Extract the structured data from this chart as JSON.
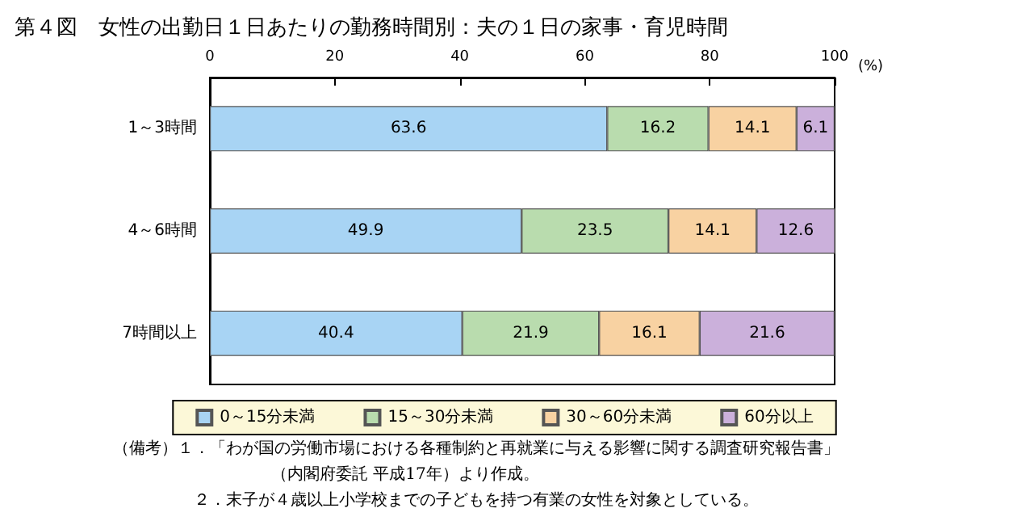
{
  "chart_data": {
    "type": "bar",
    "orientation": "horizontal",
    "stacked": true,
    "title": "第４図　女性の出勤日１日あたりの勤務時間別：夫の１日の家事・育児時間",
    "xlabel": "(%)",
    "categories": [
      "1～3時間",
      "4～6時間",
      "7時間以上"
    ],
    "series": [
      {
        "name": "0～15分未満",
        "color": "#a8d4f4",
        "values": [
          63.6,
          49.9,
          40.4
        ]
      },
      {
        "name": "15～30分未満",
        "color": "#b9dcae",
        "values": [
          16.2,
          23.5,
          21.9
        ]
      },
      {
        "name": "30～60分未満",
        "color": "#f8d2a2",
        "values": [
          14.1,
          14.1,
          16.1
        ]
      },
      {
        "name": "60分以上",
        "color": "#cbb0db",
        "values": [
          6.1,
          12.6,
          21.6
        ]
      }
    ],
    "xlim": [
      0,
      100
    ],
    "xticks": [
      0,
      20,
      40,
      60,
      80,
      100
    ],
    "data_labels": true,
    "legend": "bottom",
    "annotations": [
      "（備考）１．「わが国の労働市場における各種制約と再就業に与える影響に関する調査研究報告書」",
      "（内閣府委託 平成17年）より作成。",
      "２．末子が４歳以上小学校までの子どもを持つ有業の女性を対象としている。"
    ]
  }
}
